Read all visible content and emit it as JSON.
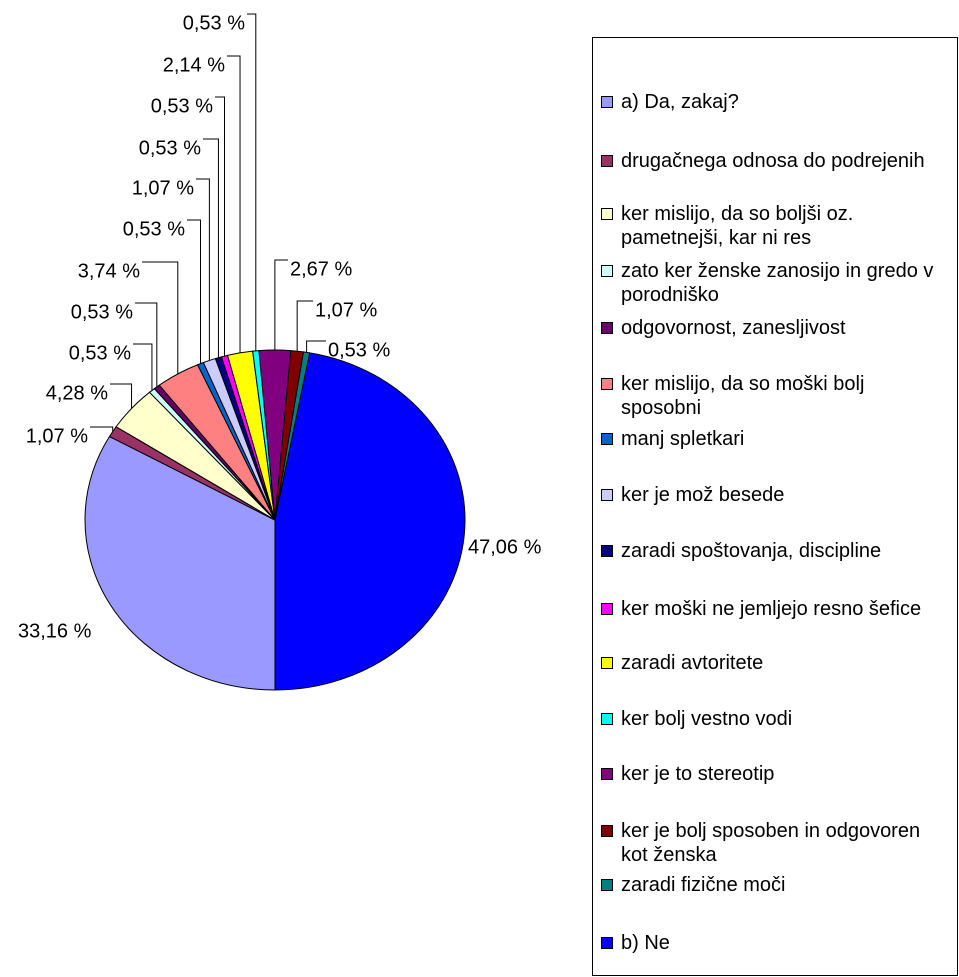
{
  "chart_data": {
    "type": "pie",
    "categories": [
      "a) Da, zakaj?",
      "drugačnega odnosa do podrejenih",
      "ker mislijo, da so boljši oz. pametnejši, kar ni res",
      "zato ker ženske zanosijo in gredo v porodniško",
      "odgovornost, zanesljivost",
      "ker mislijo, da so moški bolj sposobni",
      "manj spletkari",
      "ker je mož besede",
      "zaradi spoštovanja, discipline",
      "ker moški ne jemljejo resno šefice",
      "zaradi avtoritete",
      "ker bolj vestno vodi",
      "ker je to stereotip",
      "ker je bolj sposoben in odgovoren kot ženska",
      "zaradi fizične moči",
      "b) Ne"
    ],
    "values": [
      33.16,
      1.07,
      4.28,
      0.53,
      0.53,
      3.74,
      0.53,
      1.07,
      0.53,
      0.53,
      2.14,
      0.53,
      2.67,
      1.07,
      0.53,
      47.06
    ],
    "value_labels": [
      "33,16 %",
      "1,07 %",
      "4,28 %",
      "0,53 %",
      "0,53 %",
      "3,74 %",
      "0,53 %",
      "1,07 %",
      "0,53 %",
      "0,53 %",
      "2,14 %",
      "0,53 %",
      "2,67 %",
      "1,07 %",
      "0,53 %",
      "47,06 %"
    ],
    "colors": [
      "#9999ff",
      "#993366",
      "#ffffcc",
      "#ccffff",
      "#660066",
      "#ff8080",
      "#0066cc",
      "#ccccff",
      "#000080",
      "#ff00ff",
      "#ffff00",
      "#00ffff",
      "#800080",
      "#800000",
      "#008080",
      "#0000ff"
    ]
  }
}
